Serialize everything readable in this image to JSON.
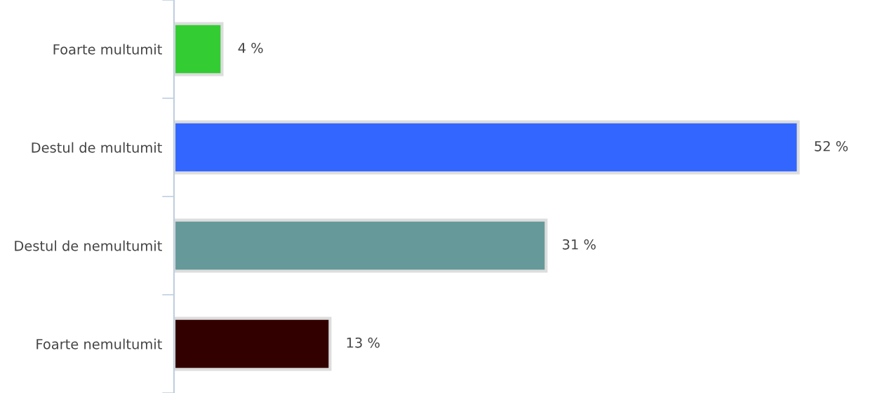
{
  "chart_data": {
    "type": "bar",
    "orientation": "horizontal",
    "categories": [
      "Foarte multumit",
      "Destul de multumit",
      "Destul de nemultumit",
      "Foarte nemultumit"
    ],
    "values": [
      4,
      52,
      31,
      13
    ],
    "colors": [
      "#33cc33",
      "#3366ff",
      "#669999",
      "#330000"
    ],
    "value_labels": [
      "4 %",
      "52 %",
      "31 %",
      "13 %"
    ],
    "grid": false,
    "legend": false
  }
}
